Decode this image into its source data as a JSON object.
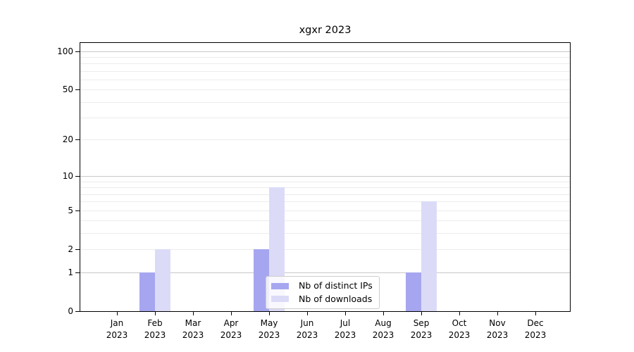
{
  "chart_data": {
    "type": "bar",
    "title": "xgxr 2023",
    "x_months": [
      "Jan",
      "Feb",
      "Mar",
      "Apr",
      "May",
      "Jun",
      "Jul",
      "Aug",
      "Sep",
      "Oct",
      "Nov",
      "Dec"
    ],
    "x_year": "2023",
    "series": [
      {
        "name": "Nb of distinct IPs",
        "color": "#a6a6f0",
        "values": [
          0,
          1,
          0,
          0,
          2,
          0,
          0,
          0,
          1,
          0,
          0,
          0
        ]
      },
      {
        "name": "Nb of downloads",
        "color": "#dbdbf8",
        "values": [
          0,
          2,
          0,
          0,
          8,
          0,
          0,
          0,
          6,
          0,
          0,
          0
        ]
      }
    ],
    "yscale": "log1p",
    "ylim": [
      0,
      116
    ],
    "y_ticks": [
      0,
      1,
      2,
      5,
      10,
      20,
      50,
      100
    ],
    "y_minor_gridlines": [
      3,
      4,
      6,
      7,
      8,
      9,
      30,
      40,
      60,
      70,
      80,
      90
    ],
    "y_decade_gridlines": [
      1,
      10,
      100
    ],
    "grid": "horizontal",
    "legend_position": "lower center",
    "colors": {
      "decade_gridline": "#c8c8c8",
      "minor_gridline": "#ececec",
      "spine": "#000000"
    }
  }
}
